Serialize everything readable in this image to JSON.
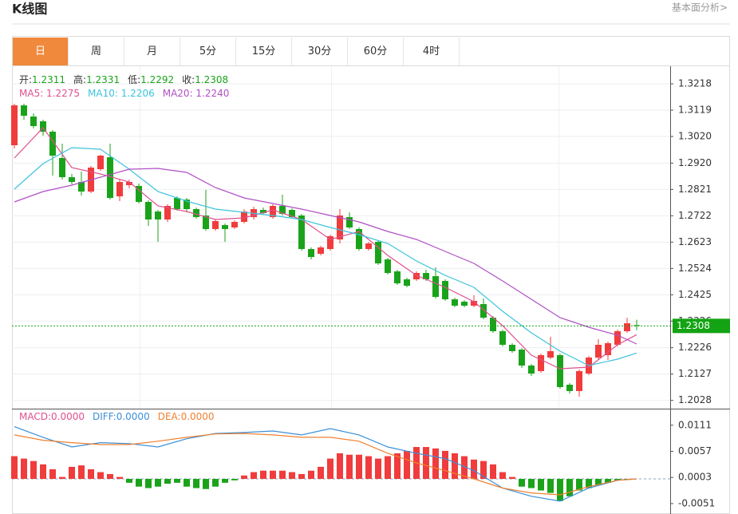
{
  "header": {
    "title": "K线图",
    "link": "基本面分析>"
  },
  "tabs": [
    "日",
    "周",
    "月",
    "5分",
    "15分",
    "30分",
    "60分",
    "4时"
  ],
  "active_tab": 0,
  "chart_data": [
    {
      "type": "candlestick",
      "up_color": "#f03c3c",
      "down_color": "#1aa31a",
      "info": [
        {
          "label": "开:",
          "value": 1.2311
        },
        {
          "label": "高:",
          "value": 1.2331
        },
        {
          "label": "低:",
          "value": 1.2292
        },
        {
          "label": "收:",
          "value": 1.2308
        }
      ],
      "info_value_color": "#1aa31a",
      "last_price": 1.2308,
      "last_price_color": "#13a313",
      "xlim": [
        -0.25,
        68.5
      ],
      "ylim": [
        1.2003,
        1.3269
      ],
      "yticks": [
        1.3218,
        1.3119,
        {
          "value": 1.302,
          "label": "1.3020"
        },
        {
          "value": 1.292,
          "label": "1.2920"
        },
        1.2821,
        1.2722,
        1.2623,
        1.2524,
        1.2425,
        1.2326,
        1.2226,
        1.2127,
        1.2028
      ],
      "grid": true,
      "ohlc": [
        [
          1.2987,
          1.3143,
          1.2975,
          1.3137
        ],
        [
          1.3137,
          1.3143,
          1.3083,
          1.3098
        ],
        [
          1.3095,
          1.3107,
          1.305,
          1.3059
        ],
        [
          1.3077,
          1.3083,
          1.3023,
          1.3038
        ],
        [
          1.3038,
          1.3044,
          1.2873,
          1.2948
        ],
        [
          1.2939,
          1.2993,
          1.2858,
          1.2867
        ],
        [
          1.2867,
          1.2879,
          1.284,
          1.2849
        ],
        [
          1.2849,
          1.2888,
          1.2798,
          1.2813
        ],
        [
          1.2813,
          1.2909,
          1.2807,
          1.2903
        ],
        [
          1.2897,
          1.2951,
          1.2891,
          1.2948
        ],
        [
          1.2942,
          1.2993,
          1.2783,
          1.2789
        ],
        [
          1.2795,
          1.2858,
          1.2777,
          1.2849
        ],
        [
          1.2837,
          1.2858,
          1.2825,
          1.2849
        ],
        [
          1.2834,
          1.2843,
          1.2768,
          1.2774
        ],
        [
          1.2774,
          1.278,
          1.2684,
          1.2708
        ],
        [
          1.2738,
          1.2744,
          1.2624,
          1.2708
        ],
        [
          1.2708,
          1.2765,
          1.2699,
          1.2759
        ],
        [
          1.2789,
          1.2795,
          1.2741,
          1.2747
        ],
        [
          1.2783,
          1.2789,
          1.2735,
          1.2747
        ],
        [
          1.2747,
          1.2753,
          1.2711,
          1.2717
        ],
        [
          1.2723,
          1.2819,
          1.2666,
          1.2672
        ],
        [
          1.2672,
          1.2708,
          1.2666,
          1.2702
        ],
        [
          1.2687,
          1.2693,
          1.2624,
          1.2672
        ],
        [
          1.2678,
          1.2705,
          1.2672,
          1.2699
        ],
        [
          1.2699,
          1.2747,
          1.2693,
          1.2738
        ],
        [
          1.2717,
          1.2756,
          1.2708,
          1.2747
        ],
        [
          1.2744,
          1.2753,
          1.2726,
          1.2732
        ],
        [
          1.2717,
          1.2765,
          1.2711,
          1.2759
        ],
        [
          1.2759,
          1.2801,
          1.2723,
          1.2729
        ],
        [
          1.2744,
          1.275,
          1.2711,
          1.2717
        ],
        [
          1.2723,
          1.2729,
          1.2591,
          1.2597
        ],
        [
          1.2597,
          1.2603,
          1.2558,
          1.2567
        ],
        [
          1.2579,
          1.2609,
          1.2573,
          1.2603
        ],
        [
          1.2597,
          1.2651,
          1.2591,
          1.2645
        ],
        [
          1.2633,
          1.2747,
          1.2618,
          1.2723
        ],
        [
          1.2717,
          1.2735,
          1.2672,
          1.2678
        ],
        [
          1.2672,
          1.2678,
          1.2591,
          1.2597
        ],
        [
          1.2597,
          1.2624,
          1.2591,
          1.2618
        ],
        [
          1.2624,
          1.263,
          1.2537,
          1.2543
        ],
        [
          1.2558,
          1.2564,
          1.2501,
          1.2507
        ],
        [
          1.2513,
          1.2519,
          1.2462,
          1.2468
        ],
        [
          1.2483,
          1.2489,
          1.2453,
          1.2459
        ],
        [
          1.2483,
          1.2513,
          1.2477,
          1.2507
        ],
        [
          1.2507,
          1.2519,
          1.2477,
          1.2483
        ],
        [
          1.2495,
          1.2528,
          1.2411,
          1.2417
        ],
        [
          1.2477,
          1.2483,
          1.2402,
          1.2408
        ],
        [
          1.2408,
          1.2414,
          1.2378,
          1.2384
        ],
        [
          1.2399,
          1.2405,
          1.2378,
          1.2384
        ],
        [
          1.2384,
          1.2423,
          1.2378,
          1.2402
        ],
        [
          1.239,
          1.2411,
          1.2333,
          1.2339
        ],
        [
          1.2339,
          1.2345,
          1.2282,
          1.2288
        ],
        [
          1.2288,
          1.2294,
          1.2231,
          1.2237
        ],
        [
          1.2237,
          1.2243,
          1.2207,
          1.2213
        ],
        [
          1.2219,
          1.2225,
          1.215,
          1.2159
        ],
        [
          1.2159,
          1.2165,
          1.212,
          1.2129
        ],
        [
          1.2138,
          1.2204,
          1.2132,
          1.2198
        ],
        [
          1.2189,
          1.2267,
          1.2183,
          1.2213
        ],
        [
          1.2198,
          1.2204,
          1.2072,
          1.2078
        ],
        [
          1.2087,
          1.2093,
          1.2054,
          1.2063
        ],
        [
          1.2063,
          1.2144,
          1.2042,
          1.2138
        ],
        [
          1.2129,
          1.2195,
          1.2123,
          1.2189
        ],
        [
          1.2189,
          1.2258,
          1.218,
          1.2237
        ],
        [
          1.2198,
          1.2249,
          1.218,
          1.2243
        ],
        [
          1.2237,
          1.2294,
          1.2231,
          1.2288
        ],
        [
          1.2288,
          1.2339,
          1.2282,
          1.2318
        ],
        [
          1.2311,
          1.2331,
          1.2292,
          1.2308
        ]
      ],
      "series": [
        {
          "name": "MA5: 1.2275",
          "color": "#e0508f",
          "x": [
            0,
            3,
            6,
            9,
            12,
            15,
            18,
            21,
            24,
            27,
            30,
            33,
            36,
            39,
            42,
            45,
            48,
            51,
            54,
            57,
            60,
            63,
            65
          ],
          "values": [
            1.2939,
            1.3053,
            1.2903,
            1.2879,
            1.2849,
            1.2759,
            1.2738,
            1.2708,
            1.2714,
            1.2744,
            1.2708,
            1.2633,
            1.2663,
            1.2573,
            1.2498,
            1.2453,
            1.2399,
            1.2309,
            1.2198,
            1.2147,
            1.2153,
            1.2237,
            1.2275
          ]
        },
        {
          "name": "MA10: 1.2206",
          "color": "#3cc3dc",
          "x": [
            0,
            3,
            6,
            9,
            12,
            15,
            18,
            21,
            24,
            27,
            30,
            33,
            36,
            39,
            42,
            45,
            48,
            51,
            54,
            57,
            60,
            63,
            65
          ],
          "values": [
            1.2822,
            1.2918,
            1.2978,
            1.2972,
            1.2897,
            1.2813,
            1.2777,
            1.2747,
            1.2735,
            1.2723,
            1.2708,
            1.2678,
            1.2651,
            1.2618,
            1.2552,
            1.2498,
            1.2453,
            1.2363,
            1.2282,
            1.2213,
            1.2159,
            1.2183,
            1.2206
          ]
        },
        {
          "name": "MA20: 1.2240",
          "color": "#b04fc4",
          "x": [
            0,
            3,
            6,
            9,
            12,
            15,
            18,
            21,
            24,
            27,
            30,
            33,
            36,
            39,
            42,
            45,
            48,
            51,
            54,
            57,
            60,
            63,
            65
          ],
          "values": [
            1.2774,
            1.2813,
            1.2837,
            1.2867,
            1.2897,
            1.29,
            1.2885,
            1.2828,
            1.2789,
            1.2768,
            1.2747,
            1.2723,
            1.2699,
            1.2663,
            1.2633,
            1.2588,
            1.2543,
            1.2477,
            1.2408,
            1.2339,
            1.2303,
            1.2273,
            1.224
          ]
        }
      ]
    },
    {
      "type": "macd",
      "up_color": "#f03c3c",
      "down_color": "#1aa31a",
      "xlim": [
        -0.25,
        68.5
      ],
      "ylim": [
        -0.0066,
        0.0142
      ],
      "yticks": [
        0.0111,
        0.0057,
        0.0003,
        -0.0051
      ],
      "histogram": {
        "name": "MACD:0.0000",
        "color": "#e0508f",
        "values": [
          0.0047,
          0.0042,
          0.0037,
          0.003,
          0.002,
          0.0004,
          0.0025,
          0.0028,
          0.002,
          0.0014,
          0.001,
          0.0004,
          -0.0008,
          -0.0016,
          -0.0019,
          -0.0016,
          -0.001,
          -0.0008,
          -0.0016,
          -0.0019,
          -0.0021,
          -0.0016,
          -0.0008,
          -0.0003,
          0.0007,
          0.0014,
          0.0017,
          0.0017,
          0.0017,
          0.0014,
          0.001,
          0.0017,
          0.0025,
          0.0042,
          0.0053,
          0.005,
          0.005,
          0.0047,
          0.0042,
          0.0047,
          0.0053,
          0.0058,
          0.0066,
          0.0066,
          0.0063,
          0.0058,
          0.0053,
          0.0047,
          0.004,
          0.0037,
          0.003,
          0.0014,
          0.0004,
          -0.0016,
          -0.0019,
          -0.0024,
          -0.0029,
          -0.0046,
          -0.0036,
          -0.0024,
          -0.0019,
          -0.0013,
          -0.0008,
          -0.0003,
          -0.0001,
          0
        ]
      },
      "series": [
        {
          "name": "DIFF:0.0000",
          "color": "#3b8fd8",
          "x": [
            0,
            3,
            6,
            9,
            12,
            15,
            18,
            21,
            24,
            27,
            30,
            33,
            36,
            39,
            42,
            45,
            48,
            51,
            54,
            57,
            60,
            63,
            65
          ],
          "values": [
            0.0108,
            0.0086,
            0.0066,
            0.0075,
            0.0073,
            0.0066,
            0.0083,
            0.0094,
            0.0096,
            0.0099,
            0.0091,
            0.0104,
            0.0091,
            0.0066,
            0.0053,
            0.0042,
            0.0017,
            -0.0019,
            -0.0036,
            -0.0046,
            -0.0019,
            -0.0003,
            0
          ]
        },
        {
          "name": "DEA:0.0000",
          "color": "#f08030",
          "x": [
            0,
            3,
            6,
            9,
            12,
            15,
            18,
            21,
            24,
            27,
            30,
            33,
            36,
            39,
            42,
            45,
            48,
            51,
            54,
            57,
            60,
            63,
            65
          ],
          "values": [
            0.0091,
            0.008,
            0.0075,
            0.0071,
            0.0071,
            0.0078,
            0.0086,
            0.0093,
            0.0094,
            0.0091,
            0.0086,
            0.0086,
            0.0078,
            0.0053,
            0.0033,
            0.0017,
            0,
            -0.0019,
            -0.0029,
            -0.0033,
            -0.0016,
            -0.0003,
            0
          ]
        }
      ]
    }
  ]
}
